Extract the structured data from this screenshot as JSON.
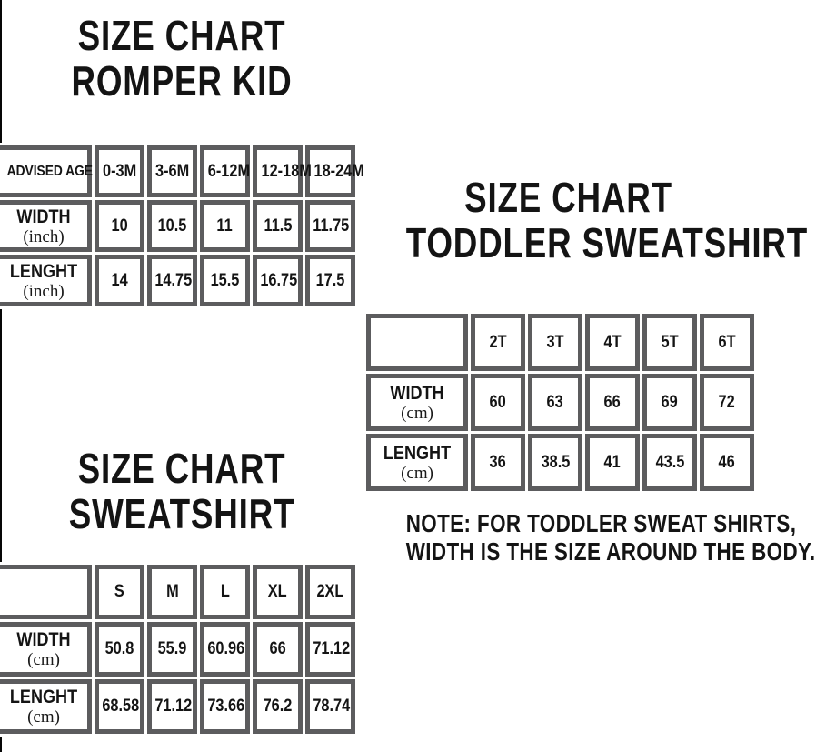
{
  "colors": {
    "background": "#ffffff",
    "table_border_gray": "#5c5c5e",
    "text_black": "#141414",
    "left_edge_line": "#060606"
  },
  "titles": {
    "romper": {
      "line1": "SIZE CHART",
      "line2": "ROMPER KID"
    },
    "toddler": {
      "line1": "SIZE CHART",
      "line2": "TODDLER SWEATSHIRT"
    },
    "sweatshirt": {
      "line1": "SIZE CHART",
      "line2": "SWEATSHIRT"
    }
  },
  "note": {
    "line1": "NOTE: FOR TODDLER SWEAT SHIRTS,",
    "line2": "WIDTH IS THE SIZE AROUND THE BODY."
  },
  "chart_data": [
    {
      "type": "table",
      "title": "SIZE CHART ROMPER KID",
      "header": [
        "ADVISED AGE",
        "0-3M",
        "3-6M",
        "6-12M",
        "12-18M",
        "18-24M"
      ],
      "rows": [
        {
          "label": "WIDTH",
          "unit": "(inch)",
          "values": [
            "10",
            "10.5",
            "11",
            "11.5",
            "11.75"
          ]
        },
        {
          "label": "LENGHT",
          "unit": "(inch)",
          "values": [
            "14",
            "14.75",
            "15.5",
            "16.75",
            "17.5"
          ]
        }
      ]
    },
    {
      "type": "table",
      "title": "SIZE CHART TODDLER SWEATSHIRT",
      "header": [
        "",
        "2T",
        "3T",
        "4T",
        "5T",
        "6T"
      ],
      "rows": [
        {
          "label": "WIDTH",
          "unit": "(cm)",
          "values": [
            "60",
            "63",
            "66",
            "69",
            "72"
          ]
        },
        {
          "label": "LENGHT",
          "unit": "(cm)",
          "values": [
            "36",
            "38.5",
            "41",
            "43.5",
            "46"
          ]
        }
      ]
    },
    {
      "type": "table",
      "title": "SIZE CHART SWEATSHIRT",
      "header": [
        "",
        "S",
        "M",
        "L",
        "XL",
        "2XL"
      ],
      "rows": [
        {
          "label": "WIDTH",
          "unit": "(cm)",
          "values": [
            "50.8",
            "55.9",
            "60.96",
            "66",
            "71.12"
          ]
        },
        {
          "label": "LENGHT",
          "unit": "(cm)",
          "values": [
            "68.58",
            "71.12",
            "73.66",
            "76.2",
            "78.74"
          ]
        }
      ]
    }
  ]
}
